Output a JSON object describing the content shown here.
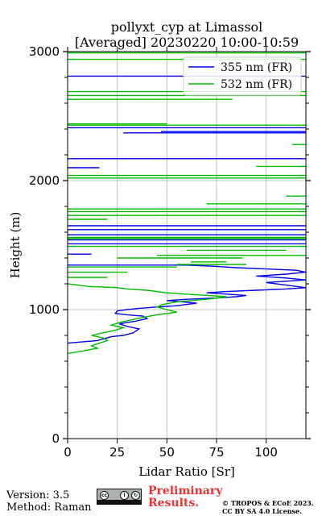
{
  "title": {
    "line1": "pollyxt_cyp at Limassol",
    "line2": "[Averaged] 20230220 10:00-10:59"
  },
  "footer": {
    "version": "Version: 3.5",
    "method": "Method: Raman",
    "preliminary_line1": "Preliminary",
    "preliminary_line2": "Results.",
    "copyright_line1": "© TROPOS & ECoE 2023.",
    "copyright_line2": "CC BY SA 4.0 License.",
    "license_icon": "cc-by-sa-license-icon"
  },
  "colors": {
    "series_355": "#0000ee",
    "series_532": "#00bb00",
    "grid": "#b0b0b0",
    "preliminary": "#ee3333"
  },
  "chart_data": {
    "type": "line",
    "title": "pollyxt_cyp at Limassol [Averaged] 20230220 10:00-10:59",
    "xlabel": "Lidar Ratio [Sr]",
    "ylabel": "Height (m)",
    "xlim": [
      0,
      120
    ],
    "ylim": [
      0,
      3000
    ],
    "xticks": [
      0,
      25,
      50,
      75,
      100
    ],
    "yticks": [
      0,
      1000,
      2000,
      3000
    ],
    "grid": true,
    "legend_position": "top-right",
    "series": [
      {
        "name": "355 nm (FR)",
        "color": "#0000ee",
        "points": [
          [
            0,
            740
          ],
          [
            15,
            760
          ],
          [
            22,
            790
          ],
          [
            28,
            800
          ],
          [
            33,
            820
          ],
          [
            36,
            850
          ],
          [
            30,
            870
          ],
          [
            26,
            890
          ],
          [
            34,
            910
          ],
          [
            40,
            930
          ],
          [
            38,
            950
          ],
          [
            30,
            960
          ],
          [
            24,
            970
          ],
          [
            25,
            990
          ],
          [
            30,
            1000
          ],
          [
            36,
            1010
          ],
          [
            45,
            1020
          ],
          [
            55,
            1030
          ],
          [
            60,
            1040
          ],
          [
            65,
            1050
          ],
          [
            58,
            1060
          ],
          [
            50,
            1070
          ],
          [
            60,
            1080
          ],
          [
            75,
            1090
          ],
          [
            85,
            1100
          ],
          [
            90,
            1110
          ],
          [
            80,
            1120
          ],
          [
            70,
            1130
          ],
          [
            80,
            1140
          ],
          [
            95,
            1150
          ],
          [
            110,
            1160
          ],
          [
            120,
            1170
          ],
          [
            110,
            1190
          ],
          [
            100,
            1210
          ],
          [
            120,
            1230
          ],
          [
            110,
            1245
          ],
          [
            95,
            1260
          ],
          [
            110,
            1275
          ],
          [
            120,
            1290
          ],
          [
            115,
            1305
          ],
          [
            100,
            1315
          ],
          [
            85,
            1325
          ],
          [
            75,
            1335
          ],
          [
            60,
            1345
          ],
          [
            0,
            1345
          ]
        ],
        "segments": [
          [
            [
              0,
              1430
            ],
            [
              12,
              1430
            ]
          ],
          [
            [
              0,
              1510
            ],
            [
              120,
              1510
            ]
          ],
          [
            [
              0,
              1540
            ],
            [
              120,
              1540
            ]
          ],
          [
            [
              0,
              1580
            ],
            [
              120,
              1580
            ]
          ],
          [
            [
              0,
              1620
            ],
            [
              120,
              1620
            ]
          ],
          [
            [
              0,
              1650
            ],
            [
              120,
              1650
            ]
          ],
          [
            [
              0,
              2100
            ],
            [
              16,
              2100
            ]
          ],
          [
            [
              0,
              2170
            ],
            [
              120,
              2170
            ]
          ],
          [
            [
              28,
              2370
            ],
            [
              120,
              2370
            ]
          ],
          [
            [
              47,
              2380
            ],
            [
              120,
              2380
            ]
          ],
          [
            [
              0,
              2410
            ],
            [
              120,
              2410
            ]
          ],
          [
            [
              0,
              2810
            ],
            [
              120,
              2810
            ]
          ]
        ]
      },
      {
        "name": "532 nm (FR)",
        "color": "#00bb00",
        "points": [
          [
            0,
            660
          ],
          [
            8,
            680
          ],
          [
            15,
            700
          ],
          [
            12,
            720
          ],
          [
            16,
            740
          ],
          [
            20,
            760
          ],
          [
            18,
            780
          ],
          [
            12,
            800
          ],
          [
            18,
            820
          ],
          [
            24,
            840
          ],
          [
            28,
            860
          ],
          [
            22,
            880
          ],
          [
            26,
            900
          ],
          [
            32,
            920
          ],
          [
            38,
            940
          ],
          [
            45,
            960
          ],
          [
            55,
            980
          ],
          [
            50,
            1000
          ],
          [
            45,
            1020
          ],
          [
            48,
            1040
          ],
          [
            55,
            1060
          ],
          [
            70,
            1080
          ],
          [
            80,
            1100
          ],
          [
            60,
            1120
          ],
          [
            50,
            1130
          ],
          [
            40,
            1150
          ],
          [
            30,
            1160
          ],
          [
            25,
            1170
          ],
          [
            10,
            1180
          ],
          [
            0,
            1200
          ]
        ],
        "segments": [
          [
            [
              0,
              1250
            ],
            [
              20,
              1250
            ]
          ],
          [
            [
              0,
              1290
            ],
            [
              30,
              1290
            ]
          ],
          [
            [
              0,
              1330
            ],
            [
              55,
              1330
            ]
          ],
          [
            [
              55,
              1350
            ],
            [
              90,
              1350
            ]
          ],
          [
            [
              62,
              1370
            ],
            [
              80,
              1370
            ]
          ],
          [
            [
              25,
              1400
            ],
            [
              88,
              1400
            ]
          ],
          [
            [
              45,
              1420
            ],
            [
              120,
              1420
            ]
          ],
          [
            [
              60,
              1460
            ],
            [
              110,
              1460
            ]
          ],
          [
            [
              0,
              1490
            ],
            [
              120,
              1490
            ]
          ],
          [
            [
              0,
              1550
            ],
            [
              120,
              1550
            ]
          ],
          [
            [
              0,
              1560
            ],
            [
              120,
              1560
            ]
          ],
          [
            [
              0,
              1700
            ],
            [
              20,
              1700
            ]
          ],
          [
            [
              0,
              1730
            ],
            [
              120,
              1730
            ]
          ],
          [
            [
              0,
              1760
            ],
            [
              120,
              1760
            ]
          ],
          [
            [
              0,
              1780
            ],
            [
              120,
              1780
            ]
          ],
          [
            [
              70,
              1820
            ],
            [
              120,
              1820
            ]
          ],
          [
            [
              110,
              1880
            ],
            [
              120,
              1880
            ]
          ],
          [
            [
              0,
              2020
            ],
            [
              120,
              2020
            ]
          ],
          [
            [
              0,
              2040
            ],
            [
              120,
              2040
            ]
          ],
          [
            [
              95,
              2110
            ],
            [
              120,
              2110
            ]
          ],
          [
            [
              113,
              2280
            ],
            [
              120,
              2280
            ]
          ],
          [
            [
              0,
              2430
            ],
            [
              120,
              2430
            ]
          ],
          [
            [
              0,
              2440
            ],
            [
              50,
              2440
            ]
          ],
          [
            [
              0,
              2630
            ],
            [
              83,
              2630
            ]
          ],
          [
            [
              0,
              2660
            ],
            [
              120,
              2660
            ]
          ],
          [
            [
              0,
              2690
            ],
            [
              120,
              2690
            ]
          ],
          [
            [
              0,
              2940
            ],
            [
              120,
              2940
            ]
          ],
          [
            [
              0,
              2990
            ],
            [
              120,
              2990
            ]
          ]
        ]
      }
    ]
  }
}
